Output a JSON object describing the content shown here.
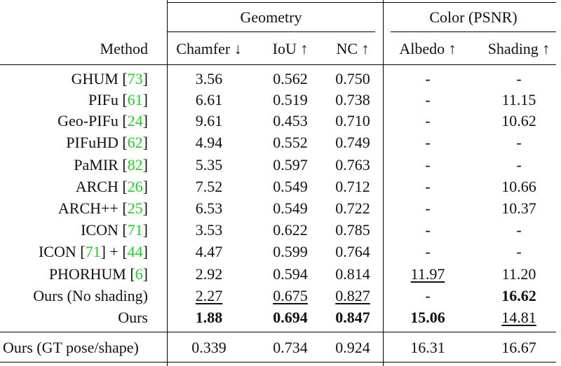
{
  "groups": {
    "geometry": "Geometry",
    "color": "Color (PSNR)"
  },
  "headers": {
    "method": "Method",
    "chamfer": "Chamfer ↓",
    "iou": "IoU ↑",
    "nc": "NC ↑",
    "albedo": "Albedo ↑",
    "shading": "Shading ↑"
  },
  "rows": [
    {
      "method": "GHUM ",
      "cite": "73",
      "chamfer": "3.56",
      "iou": "0.562",
      "nc": "0.750",
      "albedo": "-",
      "shading": "-"
    },
    {
      "method": "PIFu ",
      "cite": "61",
      "chamfer": "6.61",
      "iou": "0.519",
      "nc": "0.738",
      "albedo": "-",
      "shading": "11.15"
    },
    {
      "method": "Geo-PIFu ",
      "cite": "24",
      "chamfer": "9.61",
      "iou": "0.453",
      "nc": "0.710",
      "albedo": "-",
      "shading": "10.62"
    },
    {
      "method": "PIFuHD ",
      "cite": "62",
      "chamfer": "4.94",
      "iou": "0.552",
      "nc": "0.749",
      "albedo": "-",
      "shading": "-"
    },
    {
      "method": "PaMIR ",
      "cite": "82",
      "chamfer": "5.35",
      "iou": "0.597",
      "nc": "0.763",
      "albedo": "-",
      "shading": "-"
    },
    {
      "method": "ARCH ",
      "cite": "26",
      "chamfer": "7.52",
      "iou": "0.549",
      "nc": "0.712",
      "albedo": "-",
      "shading": "10.66"
    },
    {
      "method": "ARCH++ ",
      "cite": "25",
      "chamfer": "6.53",
      "iou": "0.549",
      "nc": "0.722",
      "albedo": "-",
      "shading": "10.37"
    },
    {
      "method": "ICON ",
      "cite": "71",
      "chamfer": "3.53",
      "iou": "0.622",
      "nc": "0.785",
      "albedo": "-",
      "shading": "-"
    },
    {
      "method": "ICON ",
      "cite": "71",
      "mid": " + ",
      "cite2": "44",
      "chamfer": "4.47",
      "iou": "0.599",
      "nc": "0.764",
      "albedo": "-",
      "shading": "-"
    },
    {
      "method": "PHORHUM ",
      "cite": "6",
      "chamfer": "2.92",
      "iou": "0.594",
      "nc": "0.814",
      "albedo": "11.97",
      "shading": "11.20"
    },
    {
      "method": "Ours (No shading)",
      "chamfer": "2.27",
      "iou": "0.675",
      "nc": "0.827",
      "albedo": "-",
      "shading": "16.62"
    },
    {
      "method": "Ours",
      "chamfer": "1.88",
      "iou": "0.694",
      "nc": "0.847",
      "albedo": "15.06",
      "shading": "14.81"
    }
  ],
  "gt_row": {
    "method": "Ours (GT pose/shape)",
    "chamfer": "0.339",
    "iou": "0.734",
    "nc": "0.924",
    "albedo": "16.31",
    "shading": "16.67"
  }
}
